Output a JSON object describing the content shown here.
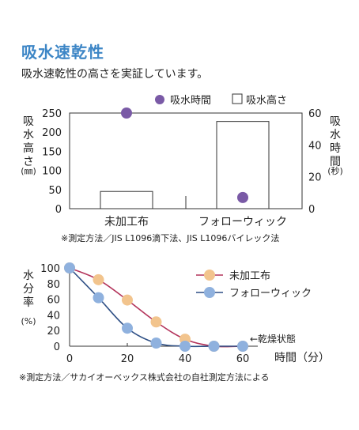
{
  "heading": "吸水速乾性",
  "subheading": "吸水速乾性の高さを実証しています。",
  "colors": {
    "heading": "#3d86c6",
    "purple": "#7a5aa6",
    "bar_stroke": "#333333",
    "orange_marker": "#f2c48d",
    "orange_line": "#b3335a",
    "blue_marker": "#8fb1de",
    "blue_line": "#2e4f85"
  },
  "chart_data": [
    {
      "type": "bar",
      "categories": [
        "未加工布",
        "フォローウィック"
      ],
      "series": [
        {
          "name": "吸水高さ",
          "axis": "left",
          "values": [
            45,
            228
          ]
        },
        {
          "name": "吸水時間",
          "axis": "right",
          "marker": "point",
          "values": [
            60,
            7
          ]
        }
      ],
      "ylabel": "吸水高さ",
      "ylabel_unit": "(㎜)",
      "ylim": [
        0,
        250
      ],
      "yticks": [
        "250",
        "200",
        "150",
        "100",
        "50",
        "0"
      ],
      "y2label": "吸水時間",
      "y2label_unit": "(秒)",
      "y2lim": [
        0,
        60
      ],
      "y2ticks": [
        "60",
        "40",
        "20",
        "0"
      ],
      "legend": [
        {
          "label": "吸水時間",
          "marker": "purple-dot-icon"
        },
        {
          "label": "吸水高さ",
          "marker": "white-square-icon"
        }
      ],
      "legend_position": "top-right",
      "note": "※測定方法／JIS L1096滴下法、JIS L1096バイレック法"
    },
    {
      "type": "line",
      "x": [
        0,
        10,
        20,
        30,
        40,
        50,
        60
      ],
      "series": [
        {
          "name": "未加工布",
          "values": [
            100,
            85,
            59,
            31,
            9,
            0,
            0
          ]
        },
        {
          "name": "フォローウィック",
          "values": [
            100,
            62,
            23,
            4,
            0,
            0,
            0
          ]
        }
      ],
      "ylabel": "水分率",
      "ylabel_unit": "(%)",
      "xlabel": "時間（分）",
      "xlim": [
        0,
        60
      ],
      "ylim": [
        0,
        100
      ],
      "xticks": [
        "0",
        "20",
        "40",
        "60"
      ],
      "yticks": [
        "100",
        "80",
        "60",
        "40",
        "20",
        "0"
      ],
      "annotation": "←乾燥状態",
      "legend_position": "top-right",
      "note": "※測定方法／サカイオーベックス株式会社の自社測定方法による"
    }
  ]
}
